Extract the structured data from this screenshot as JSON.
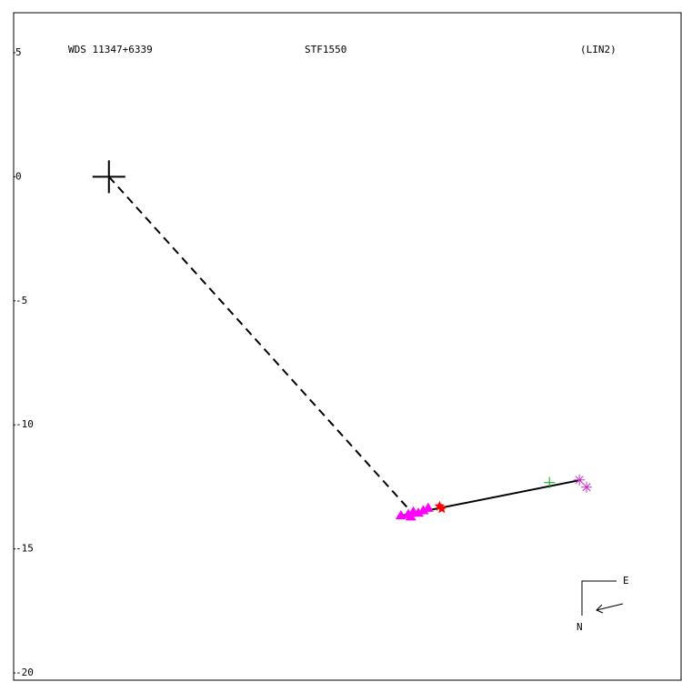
{
  "chart_data": {
    "type": "scatter",
    "title": "WDS 11347+6339",
    "subtitle": "STF1550",
    "annotation": "(LIN2)",
    "compass": {
      "east": "E",
      "north": "N"
    },
    "xlim": [
      -3.85,
      23.12
    ],
    "ylim": [
      -20.29,
      6.61
    ],
    "yticks": [
      5,
      0,
      -5,
      -10,
      -15,
      -20
    ],
    "lines": [
      {
        "color": "#000000",
        "dash": true,
        "x": [
          0,
          12.11
        ],
        "y": [
          0,
          -13.39
        ]
      },
      {
        "color": "#000000",
        "dash": false,
        "x": [
          11.67,
          19.08
        ],
        "y": [
          -13.69,
          -12.22
        ]
      }
    ],
    "series": [
      {
        "color": "#000000",
        "marker": "plus",
        "size": 18,
        "x": [
          0
        ],
        "values": [
          0
        ]
      },
      {
        "color": "#ff00ff",
        "marker": "triangle",
        "size": 6,
        "x": [
          11.8,
          12.1,
          12.3,
          12.5,
          12.7,
          12.9,
          12.2
        ],
        "values": [
          -13.65,
          -13.6,
          -13.5,
          -13.55,
          -13.45,
          -13.35,
          -13.7
        ]
      },
      {
        "color": "#ff0000",
        "marker": "star",
        "size": 6,
        "x": [
          13.36,
          13.45
        ],
        "values": [
          -13.28,
          -13.38
        ]
      },
      {
        "color": "#00aa00",
        "marker": "plus",
        "size": 6,
        "x": [
          17.8
        ],
        "values": [
          -12.33
        ]
      },
      {
        "color": "#cc33cc",
        "marker": "asterisk",
        "size": 6,
        "x": [
          19.01,
          19.3
        ],
        "values": [
          -12.22,
          -12.51
        ]
      }
    ]
  }
}
